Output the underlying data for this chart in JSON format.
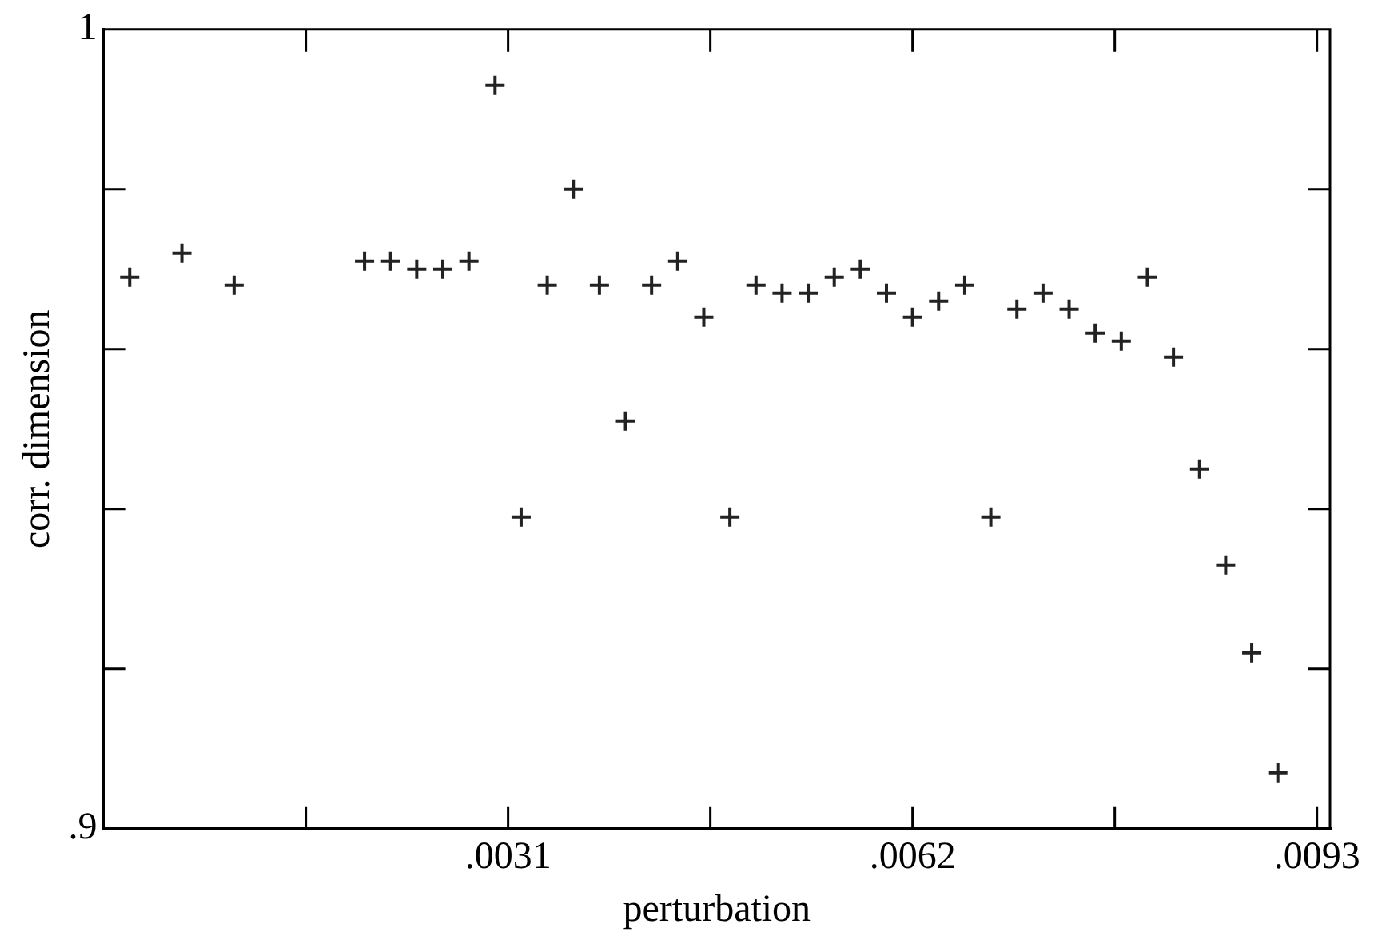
{
  "chart_data": {
    "type": "scatter",
    "xlabel": "perturbation",
    "ylabel": "corr. dimension",
    "marker": "cross",
    "grid": false,
    "legend": false,
    "xlim": [
      0,
      0.0094
    ],
    "ylim": [
      0.9,
      1
    ],
    "xticks": [
      {
        "value": 0.00155,
        "label": null
      },
      {
        "value": 0.0031,
        "label": ".0031"
      },
      {
        "value": 0.00465,
        "label": null
      },
      {
        "value": 0.0062,
        "label": ".0062"
      },
      {
        "value": 0.00775,
        "label": null
      },
      {
        "value": 0.0093,
        "label": ".0093"
      }
    ],
    "yticks": [
      {
        "value": 0.9,
        "label": ".9"
      },
      {
        "value": 0.92,
        "label": null
      },
      {
        "value": 0.94,
        "label": null
      },
      {
        "value": 0.96,
        "label": null
      },
      {
        "value": 0.98,
        "label": null
      },
      {
        "value": 1,
        "label": "1"
      }
    ],
    "series": [
      {
        "color": "#222222",
        "x": [
          0.0002,
          0.0006,
          0.001,
          0.002,
          0.0022,
          0.0024,
          0.0026,
          0.0028,
          0.003,
          0.0032,
          0.0034,
          0.0036,
          0.0038,
          0.004,
          0.0042,
          0.0044,
          0.0046,
          0.0048,
          0.005,
          0.0052,
          0.0054,
          0.0056,
          0.0058,
          0.006,
          0.0062,
          0.0064,
          0.0066,
          0.0068,
          0.007,
          0.0072,
          0.0074,
          0.0076,
          0.0078,
          0.008,
          0.0082,
          0.0084,
          0.0086,
          0.0088,
          0.009
        ],
        "values": [
          0.969,
          0.972,
          0.968,
          0.971,
          0.971,
          0.97,
          0.97,
          0.971,
          0.993,
          0.939,
          0.968,
          0.98,
          0.968,
          0.951,
          0.968,
          0.971,
          0.964,
          0.939,
          0.968,
          0.967,
          0.967,
          0.969,
          0.97,
          0.967,
          0.964,
          0.966,
          0.968,
          0.939,
          0.965,
          0.967,
          0.965,
          0.962,
          0.961,
          0.969,
          0.959,
          0.945,
          0.933,
          0.922,
          0.907
        ]
      }
    ]
  }
}
